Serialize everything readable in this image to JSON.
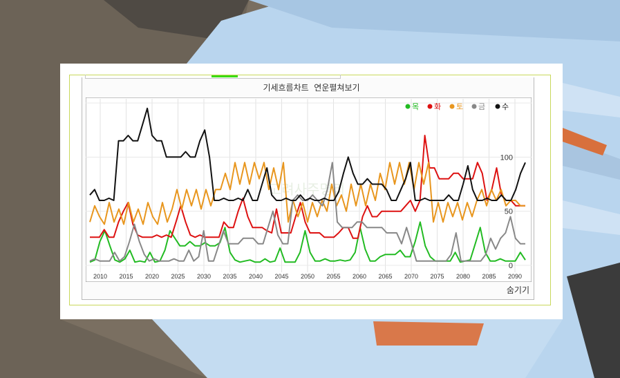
{
  "page": {
    "title": "기세흐름차트  연운펼쳐보기",
    "hide_label": "숨기기",
    "watermark": "고려사주명리"
  },
  "colors": {
    "mok": "#22bb22",
    "hwa": "#dd1111",
    "to": "#e8961e",
    "geum": "#888888",
    "su": "#111111",
    "frame": "#c8d85a",
    "tab_accent": "#3adb12"
  },
  "chart_data": {
    "type": "line",
    "x_ticks": [
      "2010",
      "2015",
      "2020",
      "2025",
      "2030",
      "2035",
      "2040",
      "2045",
      "2050",
      "2055",
      "2060",
      "2065",
      "2070",
      "2075",
      "2080",
      "2085",
      "2090"
    ],
    "x_start": 2008,
    "x_end": 2092,
    "y_ticks": [
      "0",
      "50",
      "100"
    ],
    "ylim": [
      0,
      150
    ],
    "grid": true,
    "legend_position": "top-right",
    "series": [
      {
        "name": "목",
        "color": "#22bb22",
        "values": [
          3,
          5,
          22,
          32,
          18,
          5,
          3,
          6,
          14,
          3,
          4,
          3,
          12,
          3,
          4,
          14,
          32,
          25,
          18,
          18,
          22,
          18,
          18,
          21,
          18,
          18,
          21,
          35,
          12,
          5,
          3,
          4,
          5,
          3,
          3,
          6,
          3,
          4,
          16,
          3,
          3,
          3,
          12,
          32,
          12,
          4,
          4,
          6,
          4,
          4,
          5,
          4,
          5,
          12,
          35,
          15,
          4,
          4,
          8,
          10,
          10,
          10,
          14,
          8,
          8,
          22,
          40,
          18,
          8,
          4,
          4,
          4,
          4,
          12,
          3,
          4,
          5,
          20,
          35,
          12,
          4,
          4,
          6,
          4,
          4,
          4,
          12,
          5
        ]
      },
      {
        "name": "화",
        "color": "#dd1111",
        "values": [
          26,
          26,
          26,
          33,
          26,
          26,
          40,
          50,
          58,
          38,
          28,
          26,
          26,
          26,
          28,
          26,
          28,
          26,
          40,
          55,
          40,
          28,
          26,
          28,
          26,
          26,
          26,
          26,
          40,
          35,
          35,
          50,
          62,
          45,
          35,
          35,
          35,
          32,
          30,
          52,
          30,
          30,
          30,
          45,
          58,
          40,
          30,
          30,
          30,
          26,
          26,
          26,
          30,
          35,
          35,
          25,
          25,
          45,
          55,
          45,
          45,
          50,
          50,
          50,
          50,
          50,
          55,
          60,
          50,
          60,
          120,
          90,
          90,
          80,
          80,
          80,
          85,
          85,
          80,
          80,
          80,
          95,
          85,
          60,
          70,
          90,
          65,
          60,
          60,
          55,
          55,
          55
        ]
      },
      {
        "name": "토",
        "color": "#e8961e",
        "values": [
          40,
          55,
          45,
          38,
          58,
          40,
          52,
          38,
          58,
          40,
          52,
          38,
          58,
          45,
          38,
          58,
          40,
          52,
          70,
          52,
          70,
          55,
          70,
          52,
          70,
          55,
          70,
          70,
          85,
          70,
          95,
          75,
          95,
          75,
          95,
          80,
          95,
          70,
          90,
          70,
          95,
          40,
          60,
          45,
          58,
          40,
          58,
          45,
          60,
          50,
          75,
          55,
          65,
          50,
          75,
          55,
          75,
          55,
          75,
          60,
          85,
          70,
          95,
          75,
          95,
          75,
          95,
          70,
          95,
          75,
          95,
          40,
          58,
          40,
          58,
          45,
          58,
          42,
          58,
          45,
          60,
          70,
          55,
          70,
          60,
          70,
          55,
          60,
          60,
          55,
          55
        ]
      },
      {
        "name": "금",
        "color": "#888888",
        "values": [
          4,
          6,
          4,
          4,
          4,
          12,
          4,
          8,
          22,
          38,
          22,
          10,
          4,
          6,
          4,
          4,
          4,
          6,
          4,
          4,
          14,
          4,
          8,
          32,
          4,
          4,
          18,
          32,
          20,
          20,
          20,
          25,
          25,
          25,
          20,
          20,
          35,
          50,
          28,
          20,
          20,
          60,
          65,
          60,
          60,
          65,
          60,
          55,
          70,
          95,
          40,
          35,
          35,
          35,
          40,
          40,
          35,
          35,
          35,
          35,
          30,
          30,
          30,
          20,
          35,
          20,
          4,
          4,
          4,
          4,
          4,
          4,
          4,
          10,
          30,
          4,
          4,
          4,
          4,
          4,
          10,
          25,
          15,
          25,
          30,
          45,
          25,
          20,
          20
        ]
      },
      {
        "name": "수",
        "color": "#111111",
        "values": [
          65,
          70,
          60,
          60,
          62,
          60,
          115,
          115,
          120,
          115,
          115,
          130,
          145,
          120,
          115,
          115,
          100,
          100,
          100,
          100,
          105,
          100,
          100,
          115,
          125,
          100,
          60,
          60,
          62,
          60,
          60,
          62,
          60,
          70,
          60,
          60,
          75,
          90,
          65,
          60,
          60,
          62,
          60,
          60,
          65,
          60,
          62,
          60,
          60,
          62,
          60,
          60,
          68,
          85,
          100,
          85,
          75,
          75,
          80,
          75,
          75,
          75,
          70,
          60,
          60,
          70,
          80,
          95,
          60,
          60,
          62,
          60,
          60,
          60,
          60,
          65,
          60,
          60,
          75,
          92,
          70,
          60,
          60,
          62,
          60,
          60,
          65,
          60,
          60,
          70,
          85,
          95
        ]
      }
    ]
  }
}
